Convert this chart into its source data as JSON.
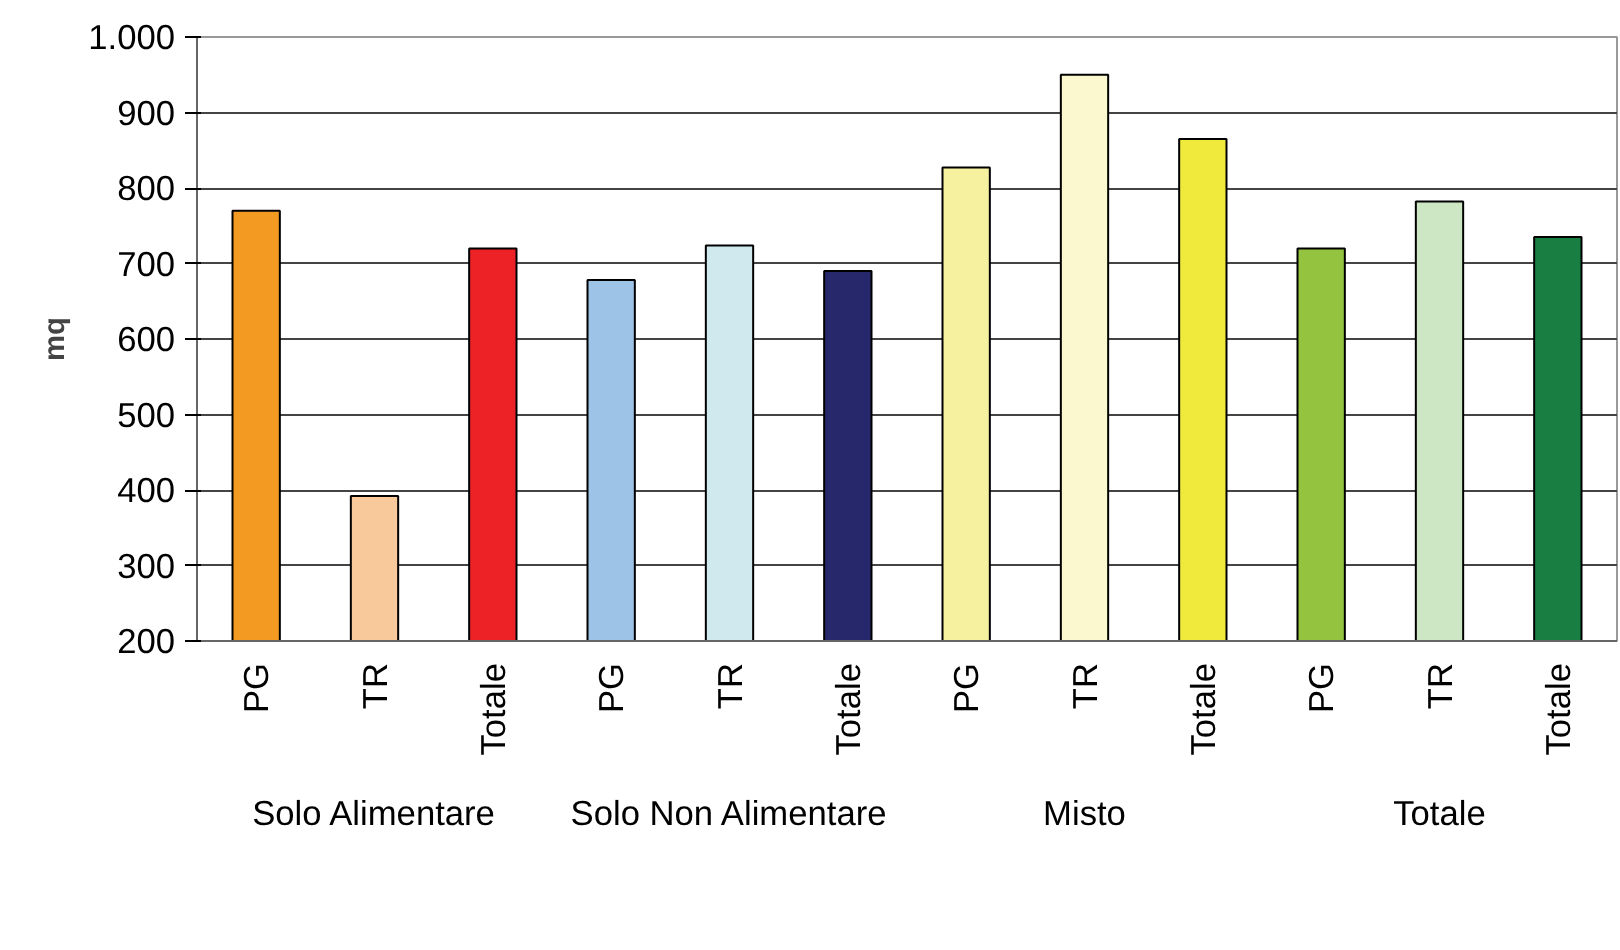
{
  "chart_data": {
    "type": "bar",
    "ylabel": "mq",
    "categories": [
      "PG",
      "TR",
      "Totale",
      "PG",
      "TR",
      "Totale",
      "PG",
      "TR",
      "Totale",
      "PG",
      "TR",
      "Totale"
    ],
    "values": [
      770,
      392,
      720,
      678,
      724,
      690,
      827,
      950,
      865,
      720,
      782,
      735
    ],
    "colors": [
      "#f39a22",
      "#f8c99a",
      "#ec2227",
      "#9dc3e6",
      "#d0e9ee",
      "#27286b",
      "#f5f19f",
      "#fbf8cf",
      "#efea3c",
      "#94c43f",
      "#cde7c4",
      "#197e41"
    ],
    "ylim": [
      200,
      1000
    ],
    "yticks": [
      200,
      300,
      400,
      500,
      600,
      700,
      800,
      900,
      {
        "value": 1000,
        "label": "1.000"
      }
    ],
    "grid": "y",
    "annotations": [
      "Solo Alimentare",
      "Solo Non Alimentare",
      "Misto",
      "Totale"
    ]
  }
}
